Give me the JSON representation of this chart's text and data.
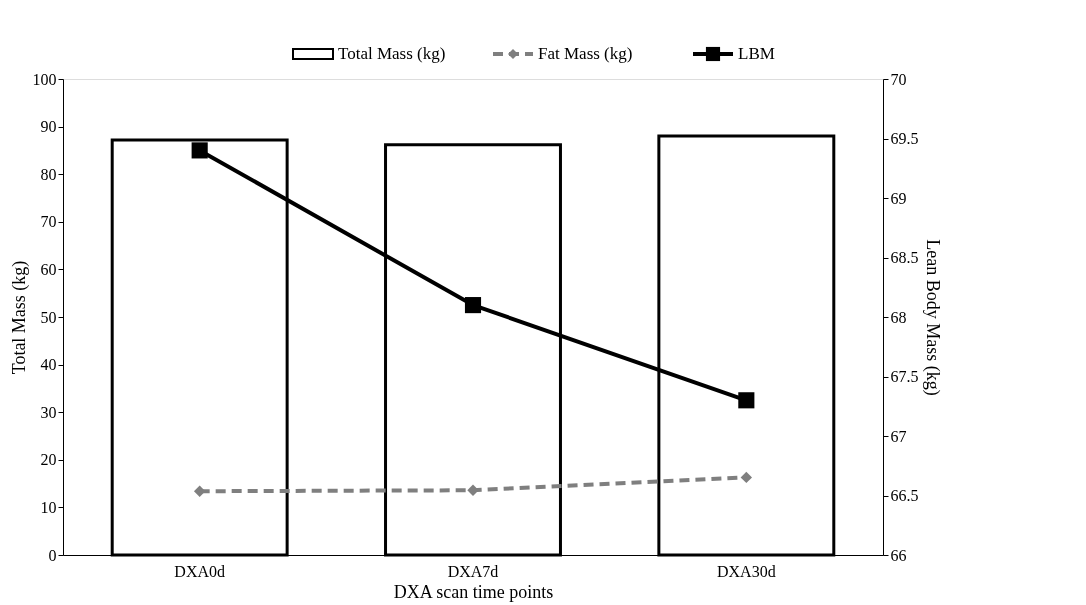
{
  "chart_data": {
    "type": "bar",
    "xlabel": "DXA scan time points",
    "ylabel": "Total Mass (kg)",
    "y2label": "Lean Body Mass (kg)",
    "categories": [
      "DXA0d",
      "DXA7d",
      "DXA30d"
    ],
    "series": [
      {
        "name": "Total Mass (kg)",
        "color": "#ffffff",
        "values": [
          87.2,
          86.2,
          88.0
        ]
      },
      {
        "name": "Fat Mass (kg)",
        "type": "line",
        "color": "#7f7f7f",
        "marker": "diamond",
        "line_style": "dashed",
        "values": [
          13.4,
          13.6,
          16.3
        ]
      },
      {
        "name": "LBM",
        "type": "line",
        "color": "#000000",
        "marker": "square",
        "line_style": "solid",
        "axis": "y2",
        "values": [
          69.4,
          68.1,
          67.3
        ]
      }
    ],
    "ylim": [
      0,
      100
    ],
    "yticks": [
      0,
      10,
      20,
      30,
      40,
      50,
      60,
      70,
      80,
      90,
      100
    ],
    "y2lim": [
      66,
      70
    ],
    "y2ticks": [
      66,
      66.5,
      67,
      67.5,
      68,
      68.5,
      69,
      69.5,
      70
    ],
    "grid": false,
    "legend": "top"
  }
}
